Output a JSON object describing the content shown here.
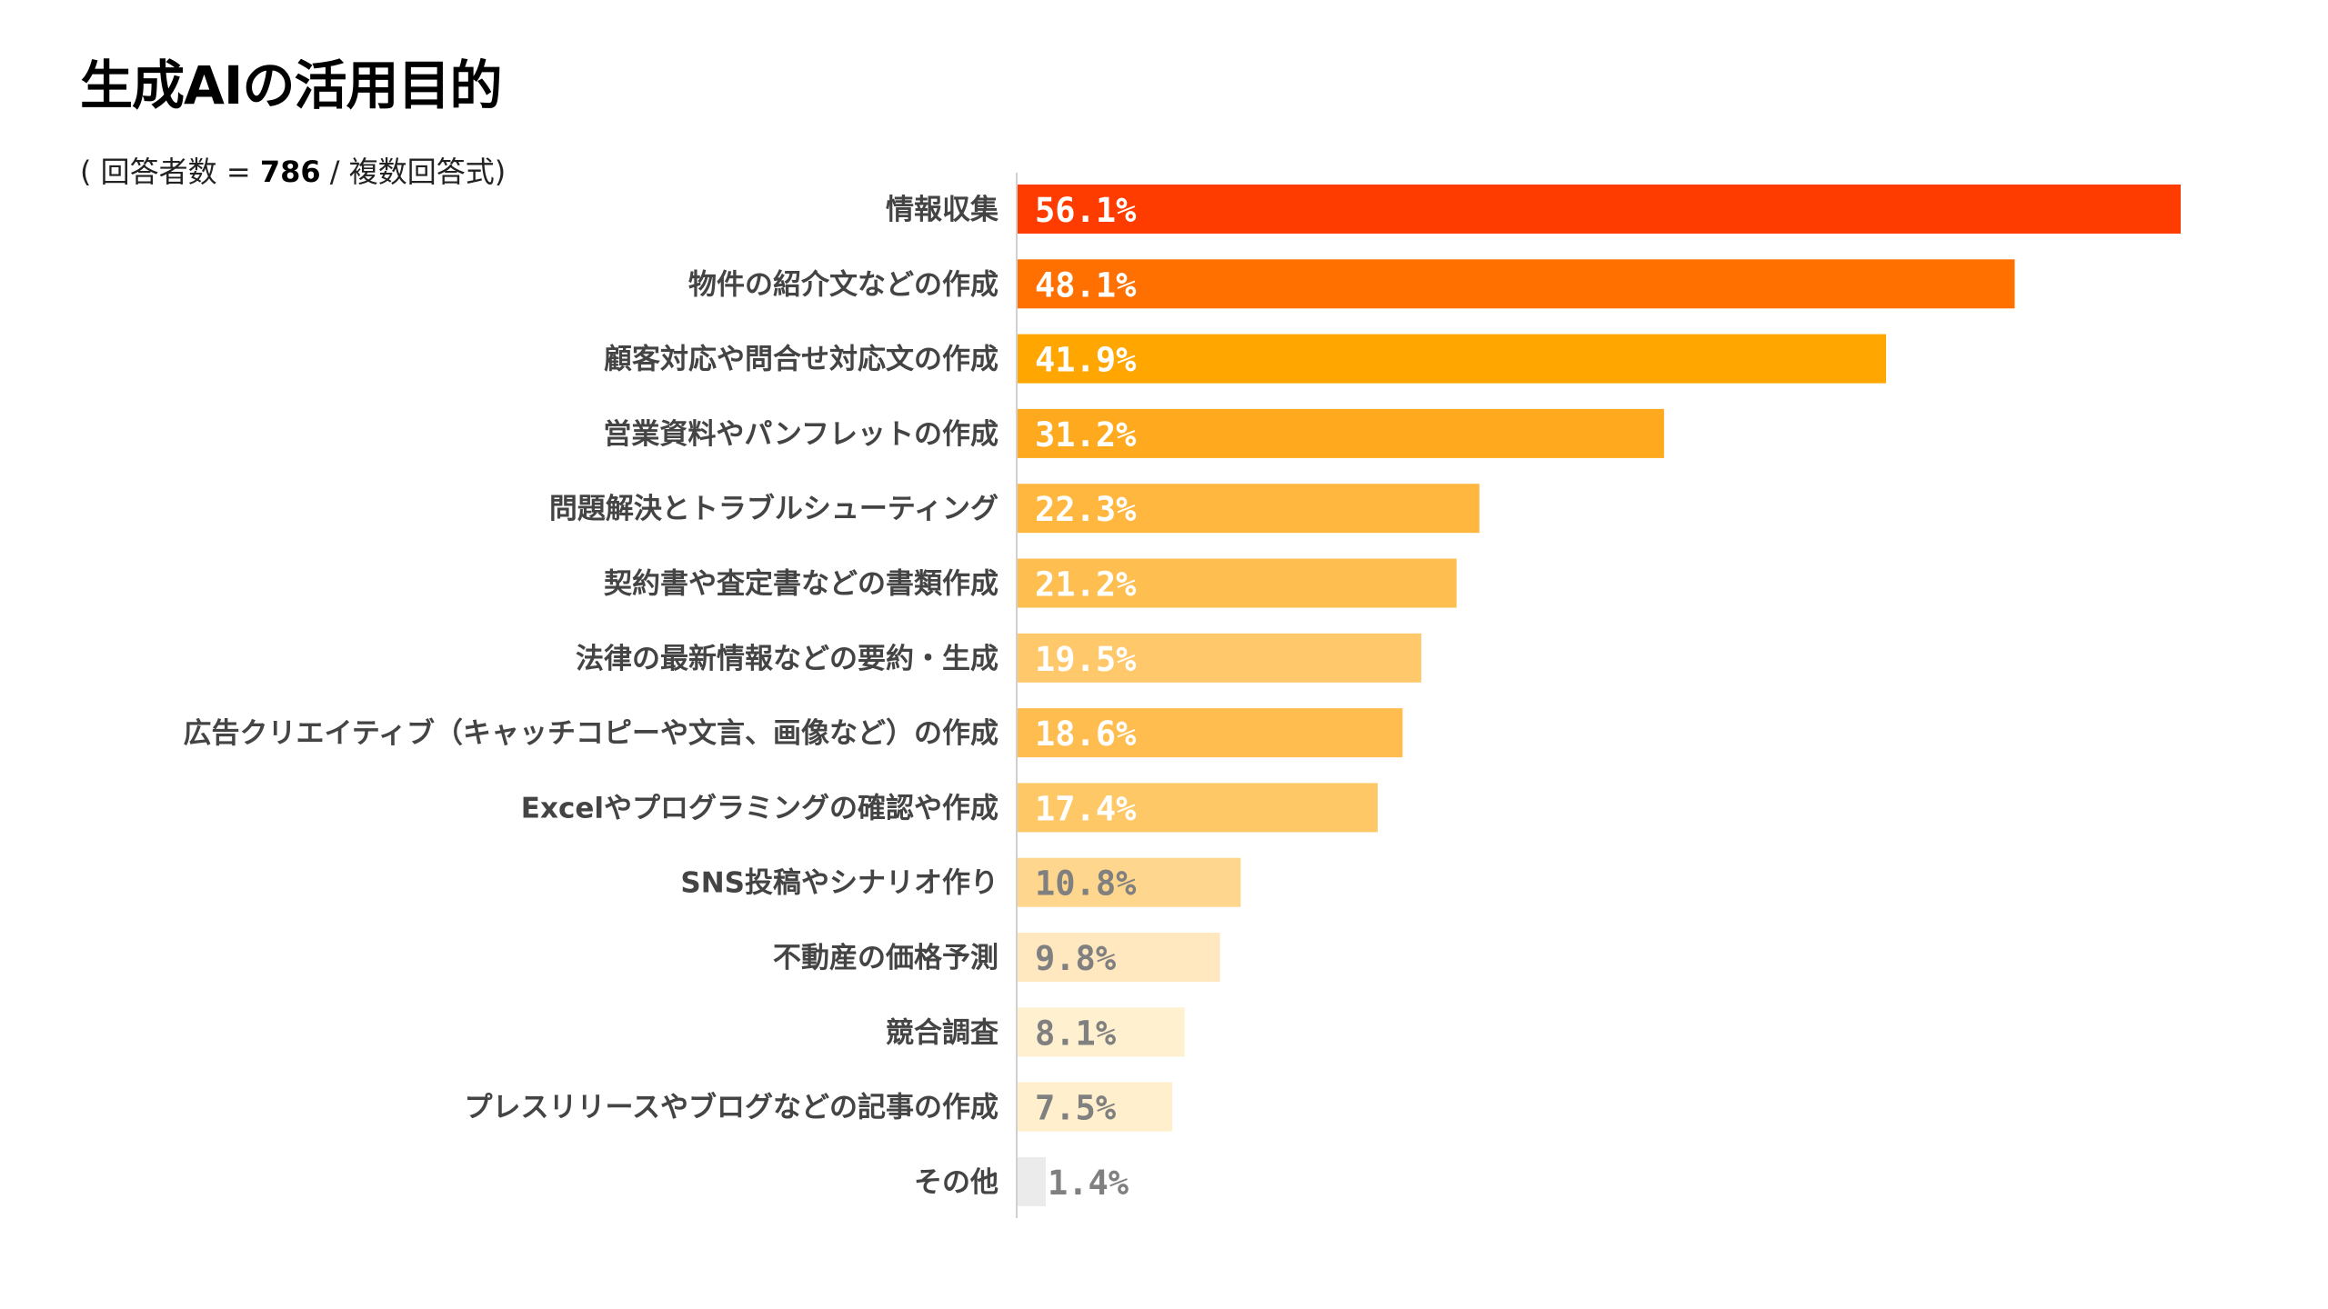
{
  "header": {
    "title": "生成AIの活用目的",
    "subtitle_prefix": "( 回答者数 = ",
    "respondents": "786",
    "subtitle_suffix": " / 複数回答式)"
  },
  "chart_data": {
    "type": "bar",
    "orientation": "horizontal",
    "title": "生成AIの活用目的",
    "subtitle": "( 回答者数 = 786 / 複数回答式)",
    "xlabel": "",
    "ylabel": "",
    "unit": "%",
    "xlim": [
      0,
      56.1
    ],
    "grid": false,
    "legend": "none",
    "categories": [
      "情報収集",
      "物件の紹介文などの作成",
      "顧客対応や問合せ対応文の作成",
      "営業資料やパンフレットの作成",
      "問題解決とトラブルシューティング",
      "契約書や査定書などの書類作成",
      "法律の最新情報などの要約・生成",
      "広告クリエイティブ（キャッチコピーや文言、画像など）の作成",
      "Excelやプログラミングの確認や作成",
      "SNS投稿やシナリオ作り",
      "不動産の価格予測",
      "競合調査",
      "プレスリリースやブログなどの記事の作成",
      "その他"
    ],
    "values": [
      56.1,
      48.1,
      41.9,
      31.2,
      22.3,
      21.2,
      19.5,
      18.6,
      17.4,
      10.8,
      9.8,
      8.1,
      7.5,
      1.4
    ],
    "value_labels": [
      "56.1%",
      "48.1%",
      "41.9%",
      "31.2%",
      "22.3%",
      "21.2%",
      "19.5%",
      "18.6%",
      "17.4%",
      "10.8%",
      "9.8%",
      "8.1%",
      "7.5%",
      "1.4%"
    ],
    "bar_colors": [
      "#FF3C00",
      "#FF7000",
      "#FFA600",
      "#FFAA1E",
      "#FFB73F",
      "#FFBE50",
      "#FFC86A",
      "#FFBD50",
      "#FFC866",
      "#FFD68D",
      "#FFE8C0",
      "#FFF1CF",
      "#FFEFCC",
      "#EBEBEB"
    ],
    "label_colors": [
      "#FFFFFF",
      "#FFFFFF",
      "#FFFFFF",
      "#FFFFFF",
      "#FFFFFF",
      "#FFFFFF",
      "#FFFFFF",
      "#FFFFFF",
      "#FFFFFF",
      "#808080",
      "#808080",
      "#808080",
      "#808080",
      "#808080"
    ],
    "axis_color": "#D0D0D0",
    "category_label_color": "#444444"
  }
}
